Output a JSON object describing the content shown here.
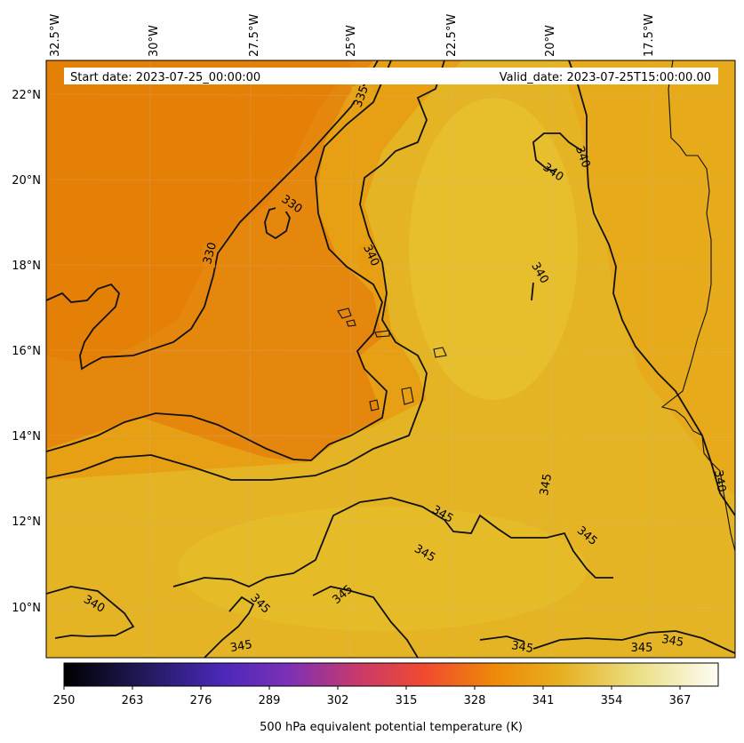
{
  "header": {
    "start_date": "Start date: 2023-07-25_00:00:00",
    "valid_date": "Valid_date: 2023-07-25T15:00:00.00"
  },
  "axes": {
    "lon_ticks": [
      "32.5°W",
      "30°W",
      "27.5°W",
      "25°W",
      "22.5°W",
      "20°W",
      "17.5°W"
    ],
    "lat_ticks": [
      "22°N",
      "20°N",
      "18°N",
      "16°N",
      "14°N",
      "12°N",
      "10°N"
    ]
  },
  "contour_labels": [
    "335",
    "330",
    "330",
    "340",
    "340",
    "340",
    "340",
    "340",
    "345",
    "345",
    "345",
    "345",
    "345",
    "345",
    "345",
    "345",
    "340",
    "345",
    "345"
  ],
  "colorbar": {
    "title": "500 hPa equivalent potential temperature (K)",
    "ticks": [
      "250",
      "263",
      "276",
      "289",
      "302",
      "315",
      "328",
      "341",
      "354",
      "367"
    ],
    "colors": [
      "#000000",
      "#2a1a6a",
      "#5a2bc8",
      "#a13aa0",
      "#e0433e",
      "#f08a10",
      "#e8a400",
      "#e8c228",
      "#ecdc80",
      "#fcfcf0"
    ]
  },
  "field_colors": {
    "cool": "#e5830a",
    "mid": "#e79a0f",
    "warm": "#e5ba27",
    "warmest": "#e8c42f"
  }
}
